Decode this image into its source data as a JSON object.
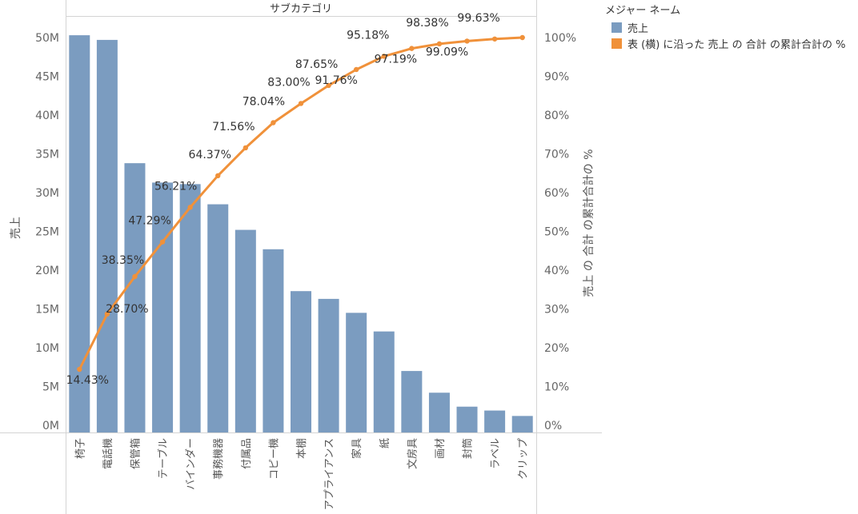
{
  "header": {
    "title": "サブカテゴリ"
  },
  "legend": {
    "title": "メジャー ネーム",
    "items": [
      {
        "label": "売上",
        "color": "#7b9cc0"
      },
      {
        "label": "表 (横) に沿った 売上 の 合計 の累計合計の %",
        "color": "#f0913a"
      }
    ]
  },
  "chart_data": {
    "type": "bar+line",
    "categories": [
      "椅子",
      "電話機",
      "保管箱",
      "テーブル",
      "バインダー",
      "事務機器",
      "付属品",
      "コピー機",
      "本棚",
      "アプライアンス",
      "家具",
      "紙",
      "文房具",
      "画材",
      "封筒",
      "ラベル",
      "クリップ"
    ],
    "series": [
      {
        "name": "売上",
        "type": "bar",
        "axis": "left",
        "values": [
          50300000,
          49700000,
          33800000,
          31300000,
          31100000,
          28500000,
          25200000,
          22700000,
          17300000,
          16300000,
          14500000,
          12100000,
          7000000,
          4200000,
          2400000,
          1900000,
          1200000
        ]
      },
      {
        "name": "表 (横) に沿った 売上 の 合計 の累計合計の %",
        "type": "line",
        "axis": "right",
        "values": [
          14.43,
          28.7,
          38.35,
          47.29,
          56.21,
          64.37,
          71.56,
          78.04,
          83.0,
          87.65,
          91.76,
          95.18,
          97.19,
          98.38,
          99.09,
          99.63,
          100.0
        ],
        "labels": [
          "14.43%",
          "28.70%",
          "38.35%",
          "47.29%",
          "56.21%",
          "64.37%",
          "71.56%",
          "78.04%",
          "83.00%",
          "87.65%",
          "91.76%",
          "95.18%",
          "97.19%",
          "98.38%",
          "99.09%",
          "99.63%",
          ""
        ]
      }
    ],
    "y_left": {
      "label": "売上",
      "ylim": [
        0,
        50000000
      ],
      "ticks": [
        0,
        5000000,
        10000000,
        15000000,
        20000000,
        25000000,
        30000000,
        35000000,
        40000000,
        45000000,
        50000000
      ],
      "tick_labels": [
        "0M",
        "5M",
        "10M",
        "15M",
        "20M",
        "25M",
        "30M",
        "35M",
        "40M",
        "45M",
        "50M"
      ]
    },
    "y_right": {
      "label": "売上 の 合計 の累計合計の %",
      "ylim": [
        0,
        100
      ],
      "ticks": [
        0,
        10,
        20,
        30,
        40,
        50,
        60,
        70,
        80,
        90,
        100
      ],
      "tick_labels": [
        "0%",
        "10%",
        "20%",
        "30%",
        "40%",
        "50%",
        "60%",
        "70%",
        "80%",
        "90%",
        "100%"
      ]
    },
    "grid": false,
    "legend_position": "top-right"
  }
}
